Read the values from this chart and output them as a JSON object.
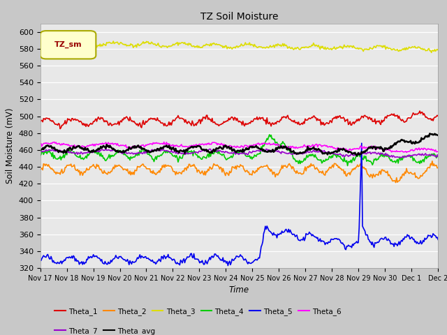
{
  "title": "TZ Soil Moisture",
  "ylabel": "Soil Moisture (mV)",
  "xlabel": "Time",
  "legend_label": "TZ_sm",
  "ylim": [
    320,
    610
  ],
  "yticks": [
    320,
    340,
    360,
    380,
    400,
    420,
    440,
    460,
    480,
    500,
    520,
    540,
    560,
    580,
    600
  ],
  "figsize": [
    6.4,
    4.8
  ],
  "dpi": 100,
  "fig_bg": "#c8c8c8",
  "plot_bg": "#e8e8e8",
  "series_order": [
    "Theta_1",
    "Theta_2",
    "Theta_3",
    "Theta_4",
    "Theta_5",
    "Theta_6",
    "Theta_7",
    "Theta_avg"
  ],
  "series_colors": {
    "Theta_1": "#dd0000",
    "Theta_2": "#ff8800",
    "Theta_3": "#dddd00",
    "Theta_4": "#00cc00",
    "Theta_5": "#0000ee",
    "Theta_6": "#ff00ff",
    "Theta_7": "#9900cc",
    "Theta_avg": "#000000"
  },
  "xtick_labels": [
    "Nov 17",
    "Nov 18",
    "Nov 19",
    "Nov 20",
    "Nov 21",
    "Nov 22",
    "Nov 23",
    "Nov 24",
    "Nov 25",
    "Nov 26",
    "Nov 27",
    "Nov 28",
    "Nov 29",
    "Nov 30",
    "Dec 1",
    "Dec 2"
  ],
  "legend_row1": [
    "Theta_1",
    "Theta_2",
    "Theta_3",
    "Theta_4",
    "Theta_5",
    "Theta_6"
  ],
  "legend_row2": [
    "Theta_7",
    "Theta_avg"
  ]
}
